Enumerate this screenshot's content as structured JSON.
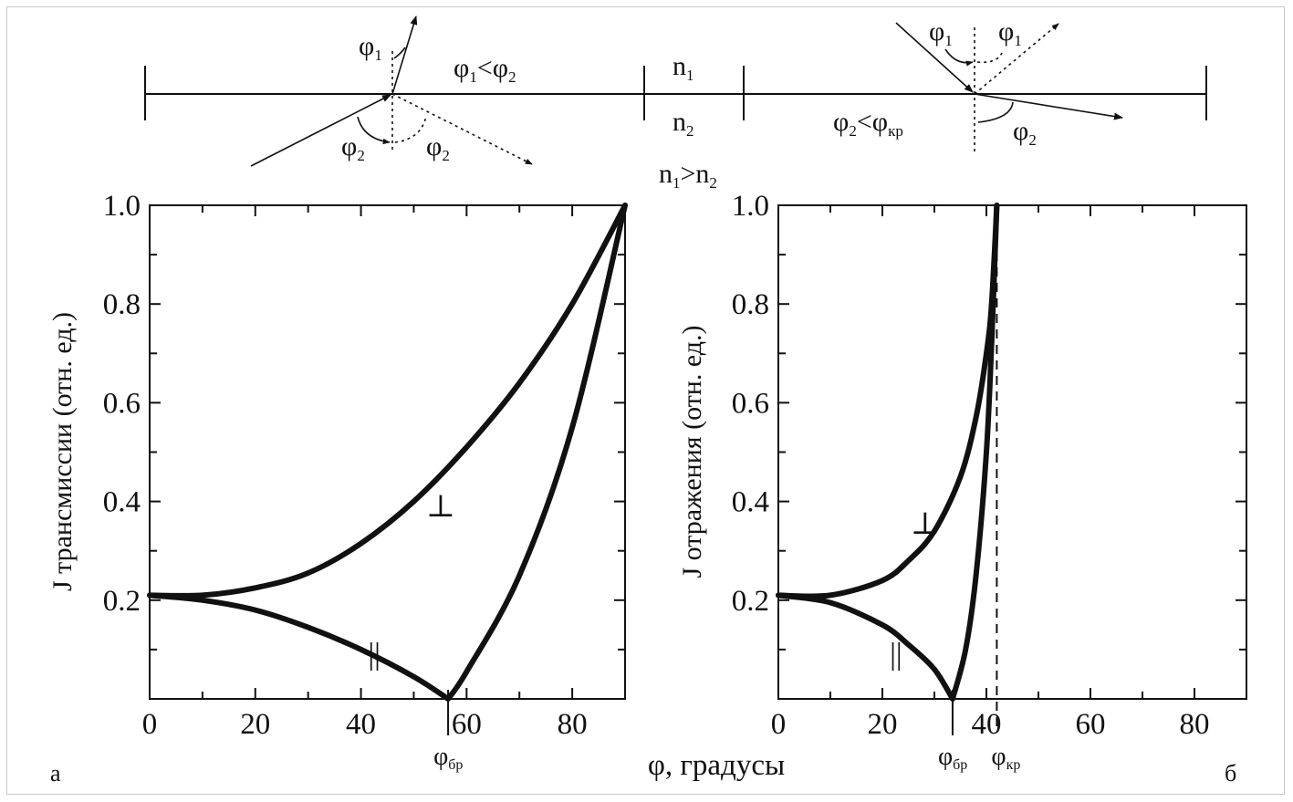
{
  "schematic": {
    "left": {
      "phi1": "φ",
      "phi1_sub": "1",
      "condition_a": "φ",
      "condition_a_sub": "1",
      "condition_lt": "<",
      "condition_b": "φ",
      "condition_b_sub": "2",
      "phi2_left": "φ",
      "phi2_left_sub": "2",
      "phi2_right": "φ",
      "phi2_right_sub": "2"
    },
    "media": {
      "n1": "n",
      "n1_sub": "1",
      "n2": "n",
      "n2_sub": "2",
      "relation_a": "n",
      "relation_a_sub": "1",
      "relation_gt": ">",
      "relation_b": "n",
      "relation_b_sub": "2"
    },
    "right": {
      "phi1_left": "φ",
      "phi1_left_sub": "1",
      "phi1_right": "φ",
      "phi1_right_sub": "1",
      "condition_a": "φ",
      "condition_a_sub": "2",
      "condition_lt": "<",
      "condition_b": "φ",
      "condition_b_sub": "кр",
      "phi2": "φ",
      "phi2_sub": "2"
    }
  },
  "shared_xlabel": "φ, градусы",
  "panel_letters": {
    "left": "а",
    "right": "б"
  },
  "chart_data": [
    {
      "type": "line",
      "panel": "а",
      "ylabel": "J трансмиссии (отн. ед.)",
      "xlim": [
        0,
        90
      ],
      "ylim": [
        0,
        1.0
      ],
      "x_ticks": [
        "0",
        "20",
        "40",
        "60",
        "80"
      ],
      "y_ticks": [
        "0.2",
        "0.4",
        "0.6",
        "0.8",
        "1.0"
      ],
      "marker": {
        "label": "φ",
        "label_sub": "бр",
        "x": 56.5
      },
      "series": [
        {
          "name": "⊥",
          "x": [
            0,
            10,
            20,
            30,
            40,
            50,
            60,
            70,
            80,
            90
          ],
          "y": [
            0.21,
            0.21,
            0.225,
            0.255,
            0.315,
            0.4,
            0.51,
            0.64,
            0.8,
            1.0
          ]
        },
        {
          "name": "||",
          "x": [
            0,
            10,
            20,
            30,
            40,
            50,
            56.5,
            60,
            70,
            80,
            90
          ],
          "y": [
            0.21,
            0.2,
            0.18,
            0.145,
            0.1,
            0.045,
            0.0,
            0.055,
            0.25,
            0.55,
            1.0
          ]
        }
      ]
    },
    {
      "type": "line",
      "panel": "б",
      "ylabel": "J отражения (отн. ед.)",
      "xlim": [
        0,
        90
      ],
      "ylim": [
        0,
        1.0
      ],
      "x_ticks": [
        "0",
        "20",
        "40",
        "60",
        "80"
      ],
      "y_ticks": [
        "0.2",
        "0.4",
        "0.6",
        "0.8",
        "1.0"
      ],
      "markers": [
        {
          "label": "φ",
          "label_sub": "бр",
          "x": 33.5
        },
        {
          "label": "φ",
          "label_sub": "кр",
          "x": 42
        }
      ],
      "series": [
        {
          "name": "⊥",
          "x": [
            0,
            10,
            20,
            25,
            30,
            35,
            38,
            40,
            41,
            42
          ],
          "y": [
            0.21,
            0.21,
            0.24,
            0.28,
            0.34,
            0.45,
            0.57,
            0.7,
            0.8,
            1.0
          ]
        },
        {
          "name": "||",
          "x": [
            0,
            10,
            20,
            25,
            30,
            33.5,
            36,
            38,
            40,
            41,
            42
          ],
          "y": [
            0.21,
            0.195,
            0.15,
            0.11,
            0.06,
            0.0,
            0.1,
            0.25,
            0.5,
            0.72,
            1.0
          ]
        }
      ]
    }
  ]
}
